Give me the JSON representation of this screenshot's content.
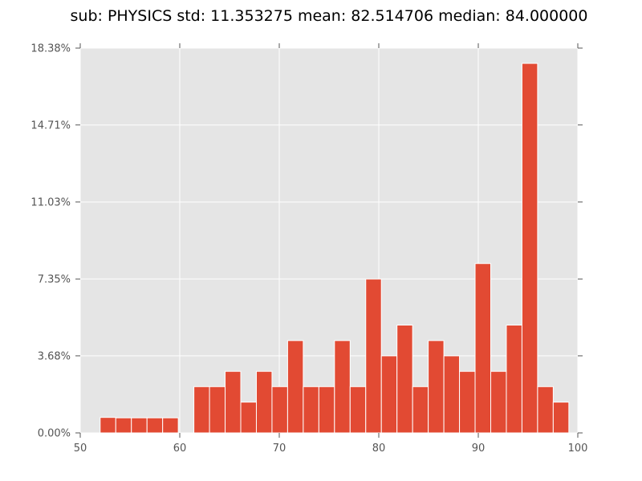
{
  "chart_data": {
    "type": "bar",
    "title": "sub: PHYSICS std: 11.353275 mean: 82.514706 median: 84.000000",
    "xlabel": "",
    "ylabel": "",
    "xlim": [
      50,
      100
    ],
    "ylim": [
      0,
      18.38
    ],
    "x_ticks": [
      "50",
      "60",
      "70",
      "80",
      "90",
      "100"
    ],
    "y_ticks": [
      "0.00%",
      "3.68%",
      "7.35%",
      "11.03%",
      "14.71%",
      "18.38%"
    ],
    "grid": true,
    "bin_width": 1.57,
    "bins": [
      {
        "x": 52.0,
        "value": 0.74
      },
      {
        "x": 53.57,
        "value": 0.72
      },
      {
        "x": 55.14,
        "value": 0.72
      },
      {
        "x": 56.71,
        "value": 0.72
      },
      {
        "x": 58.28,
        "value": 0.72
      },
      {
        "x": 59.85,
        "value": 0.0
      },
      {
        "x": 61.42,
        "value": 2.21
      },
      {
        "x": 62.99,
        "value": 2.21
      },
      {
        "x": 64.56,
        "value": 2.94
      },
      {
        "x": 66.13,
        "value": 1.47
      },
      {
        "x": 67.7,
        "value": 2.94
      },
      {
        "x": 69.27,
        "value": 2.21
      },
      {
        "x": 70.84,
        "value": 4.41
      },
      {
        "x": 72.41,
        "value": 2.21
      },
      {
        "x": 73.98,
        "value": 2.21
      },
      {
        "x": 75.55,
        "value": 4.41
      },
      {
        "x": 77.12,
        "value": 2.21
      },
      {
        "x": 78.69,
        "value": 7.35
      },
      {
        "x": 80.26,
        "value": 3.68
      },
      {
        "x": 81.83,
        "value": 5.15
      },
      {
        "x": 83.4,
        "value": 2.21
      },
      {
        "x": 84.97,
        "value": 4.41
      },
      {
        "x": 86.54,
        "value": 3.68
      },
      {
        "x": 88.11,
        "value": 2.94
      },
      {
        "x": 89.68,
        "value": 8.09
      },
      {
        "x": 91.25,
        "value": 2.94
      },
      {
        "x": 92.82,
        "value": 5.15
      },
      {
        "x": 94.39,
        "value": 17.65
      },
      {
        "x": 95.96,
        "value": 2.21
      },
      {
        "x": 97.53,
        "value": 1.47
      }
    ],
    "colors": {
      "bar": "#e24a33",
      "bar_edge": "#ffffff",
      "plot_background": "#e5e5e5",
      "grid": "#ffffff",
      "tick_label": "#555555"
    }
  }
}
